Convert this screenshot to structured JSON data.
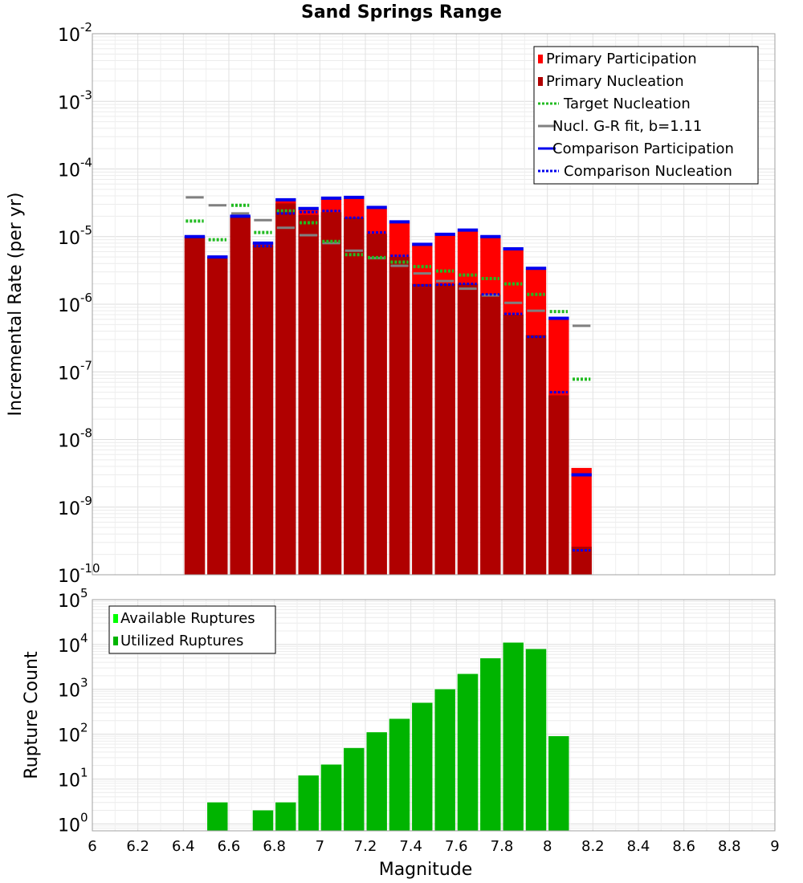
{
  "chart_data": [
    {
      "type": "bar",
      "title": "Sand Springs Range",
      "xlabel": "",
      "ylabel": "Incremental Rate (per yr)",
      "xlim": [
        6,
        9
      ],
      "ylim": [
        1e-10,
        0.01
      ],
      "y_scale": "log",
      "grid": true,
      "legend_placement": "top-right",
      "legend": [
        {
          "label": "Primary Participation",
          "style": "box",
          "color": "#ff0000"
        },
        {
          "label": "Primary Nucleation",
          "style": "box",
          "color": "#b00000"
        },
        {
          "label": "Target Nucleation",
          "style": "dotted",
          "color": "#22bb22"
        },
        {
          "label": "Nucl. G-R fit, b=1.11",
          "style": "solid",
          "color": "#808080"
        },
        {
          "label": "Comparison Participation",
          "style": "solid",
          "color": "#0000ee"
        },
        {
          "label": "Comparison Nucleation",
          "style": "dotted",
          "color": "#0000ee"
        }
      ],
      "x": [
        6.45,
        6.55,
        6.65,
        6.75,
        6.85,
        6.95,
        7.05,
        7.15,
        7.25,
        7.35,
        7.45,
        7.55,
        7.65,
        7.75,
        7.85,
        7.95,
        8.05,
        8.15
      ],
      "series": [
        {
          "name": "Primary Participation",
          "values": [
            1e-05,
            5e-06,
            2e-05,
            8e-06,
            3.4e-05,
            2.5e-05,
            3.6e-05,
            3.7e-05,
            2.6e-05,
            1.6e-05,
            7.5e-06,
            1.05e-05,
            1.2e-05,
            9.8e-06,
            6.4e-06,
            3.3e-06,
            6e-07,
            3.8e-09
          ]
        },
        {
          "name": "Primary Nucleation",
          "values": [
            1e-05,
            5e-06,
            2e-05,
            7.5e-06,
            3.1e-05,
            2.1e-05,
            2.3e-05,
            1.9e-05,
            1.1e-05,
            5e-06,
            2e-06,
            2e-06,
            2e-06,
            1.4e-06,
            7e-07,
            3.5e-07,
            4.5e-08,
            2.6e-10
          ]
        },
        {
          "name": "Target Nucleation",
          "values": [
            1.7e-05,
            9e-06,
            2.9e-05,
            1.15e-05,
            2.4e-05,
            1.6e-05,
            8.5e-06,
            5.4e-06,
            4.9e-06,
            4.2e-06,
            3.6e-06,
            3.1e-06,
            2.7e-06,
            2.4e-06,
            2e-06,
            1.4e-06,
            7.8e-07,
            7.8e-08
          ]
        },
        {
          "name": "Nucl. G-R fit, b=1.11",
          "values": [
            3.8e-05,
            2.9e-05,
            2.2e-05,
            1.75e-05,
            1.35e-05,
            1.05e-05,
            8e-06,
            6.2e-06,
            4.8e-06,
            3.7e-06,
            2.85e-06,
            2.2e-06,
            1.7e-06,
            1.35e-06,
            1.05e-06,
            8e-07,
            6.2e-07,
            4.8e-07
          ]
        },
        {
          "name": "Comparison Participation",
          "values": [
            1e-05,
            5e-06,
            2e-05,
            8e-06,
            3.5e-05,
            2.6e-05,
            3.7e-05,
            3.8e-05,
            2.7e-05,
            1.65e-05,
            7.7e-06,
            1.08e-05,
            1.25e-05,
            1e-05,
            6.6e-06,
            3.4e-06,
            6.2e-07,
            3e-09
          ]
        },
        {
          "name": "Comparison Nucleation",
          "values": [
            null,
            null,
            2e-05,
            7.2e-06,
            2.2e-05,
            2.3e-05,
            2.4e-05,
            1.9e-05,
            1.15e-05,
            5.2e-06,
            1.9e-06,
            1.95e-06,
            2e-06,
            1.4e-06,
            7.2e-07,
            3.3e-07,
            5e-08,
            2.3e-10
          ]
        }
      ]
    },
    {
      "type": "bar",
      "title": "",
      "xlabel": "Magnitude",
      "ylabel": "Rupture Count",
      "xlim": [
        6,
        9
      ],
      "ylim": [
        0.7,
        100000
      ],
      "y_scale": "log",
      "grid": true,
      "legend_placement": "top-left",
      "xticks": [
        "6",
        "6.2",
        "6.4",
        "6.6",
        "6.8",
        "7",
        "7.2",
        "7.4",
        "7.6",
        "7.8",
        "8",
        "8.2",
        "8.4",
        "8.6",
        "8.8",
        "9"
      ],
      "legend": [
        {
          "label": "Available Ruptures",
          "style": "box",
          "color": "#00ff00"
        },
        {
          "label": "Utilized Ruptures",
          "style": "box",
          "color": "#00b400"
        }
      ],
      "x": [
        6.55,
        6.75,
        6.85,
        6.95,
        7.05,
        7.15,
        7.25,
        7.35,
        7.45,
        7.55,
        7.65,
        7.75,
        7.85,
        7.95,
        8.05
      ],
      "series": [
        {
          "name": "Available Ruptures",
          "values": [
            3,
            2,
            3,
            12,
            21,
            49,
            110,
            220,
            500,
            1000,
            2200,
            4900,
            11000,
            7900,
            90
          ]
        },
        {
          "name": "Utilized Ruptures",
          "values": [
            3,
            2,
            3,
            12,
            21,
            49,
            110,
            220,
            500,
            1000,
            2200,
            4900,
            11000,
            7900,
            90
          ]
        }
      ]
    }
  ],
  "colors": {
    "participation": "#ff0000",
    "nucleation": "#b00000",
    "target": "#22bb22",
    "gr_fit": "#808080",
    "comparison": "#0000ee",
    "available": "#00ff00",
    "utilized": "#00b400"
  }
}
